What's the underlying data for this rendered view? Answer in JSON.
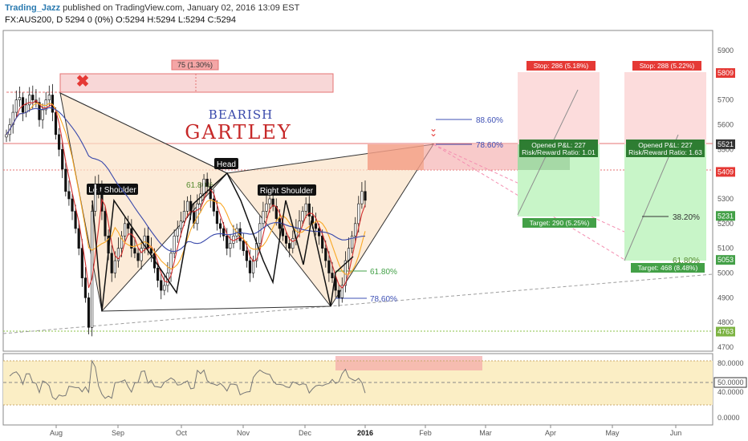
{
  "header": {
    "user": "Trading_Jazz",
    "published": "published on TradingView.com, January 02, 2016 13:09 EST",
    "ohlc": "FX:AUS200, D  5294 0 (0%) O:5294 H:5294 L:5294 C:5294"
  },
  "chart_data": {
    "type": "candlestick",
    "symbol": "FX:AUS200",
    "timeframe": "D",
    "xlabels": [
      "Aug",
      "Sep",
      "Oct",
      "Nov",
      "Dec",
      "2016",
      "Feb",
      "Mar",
      "Apr",
      "May",
      "Jun"
    ],
    "ylabels": [
      "5900",
      "5800",
      "5700",
      "5600",
      "5500",
      "5400",
      "5300",
      "5200",
      "5100",
      "5000",
      "4900",
      "4800",
      "4700"
    ],
    "ylim": [
      4680,
      5950
    ],
    "price_badges": [
      {
        "value": "5809",
        "color": "#e53935"
      },
      {
        "value": "5521",
        "color": "#333333"
      },
      {
        "value": "5409",
        "color": "#e53935"
      },
      {
        "value": "5231",
        "color": "#43a047"
      },
      {
        "value": "5053",
        "color": "#43a047"
      },
      {
        "value": "4763",
        "color": "#7cb342"
      }
    ],
    "closes": [
      5560,
      5600,
      5650,
      5700,
      5710,
      5650,
      5680,
      5720,
      5700,
      5690,
      5620,
      5660,
      5700,
      5720,
      5650,
      5560,
      5500,
      5420,
      5330,
      5300,
      5250,
      5180,
      5100,
      4980,
      4900,
      4780,
      5250,
      5360,
      5330,
      5250,
      5150,
      5080,
      5000,
      5050,
      5100,
      5150,
      5200,
      5180,
      5100,
      5080,
      5050,
      5100,
      5150,
      5100,
      5080,
      5020,
      4970,
      4930,
      4950,
      5000,
      5080,
      5150,
      5180,
      5210,
      5250,
      5290,
      5250,
      5200,
      5280,
      5320,
      5380,
      5350,
      5300,
      5250,
      5200,
      5180,
      5150,
      5100,
      5120,
      5150,
      5180,
      5130,
      5090,
      5050,
      5000,
      5050,
      5120,
      5200,
      5250,
      5280,
      5300,
      5270,
      5220,
      5180,
      5150,
      5120,
      5100,
      5140,
      5180,
      5210,
      5250,
      5280,
      5230,
      5200,
      5180,
      5150,
      5100,
      5050,
      5000,
      4980,
      4930,
      4900,
      4950,
      5050,
      5100,
      5150,
      5200,
      5280,
      5330,
      5294
    ],
    "rsi_ylabels": [
      "80.0000",
      "50.0000",
      "40.0000",
      "0.0000"
    ],
    "annotations": {
      "bearish": "BEARISH",
      "gartley": "GARTLEY",
      "left_shoulder": "Left Shoulder",
      "head": "Head",
      "right_shoulder": "Right Shoulder",
      "fib_886": "88.60%",
      "fib_786": "78.60%",
      "fib_618_a": "61.80%",
      "fib_618_b": "61.80%",
      "fib_786_b": "78.60%",
      "fib_382": "38.20%",
      "fib_618_c": "61.80%",
      "measure": "75 (1.30%)",
      "stop1": "Stop: 286 (5.18%)",
      "pl1": "Opened P&L: 227",
      "rr1": "Risk/Reward Ratio: 1.01",
      "target1": "Target: 290 (5.25%)",
      "stop2": "Stop: 288 (5.22%)",
      "pl2": "Opened P&L: 227",
      "rr2": "Risk/Reward Ratio: 1.63",
      "target2": "Target: 468 (8.48%)"
    }
  }
}
